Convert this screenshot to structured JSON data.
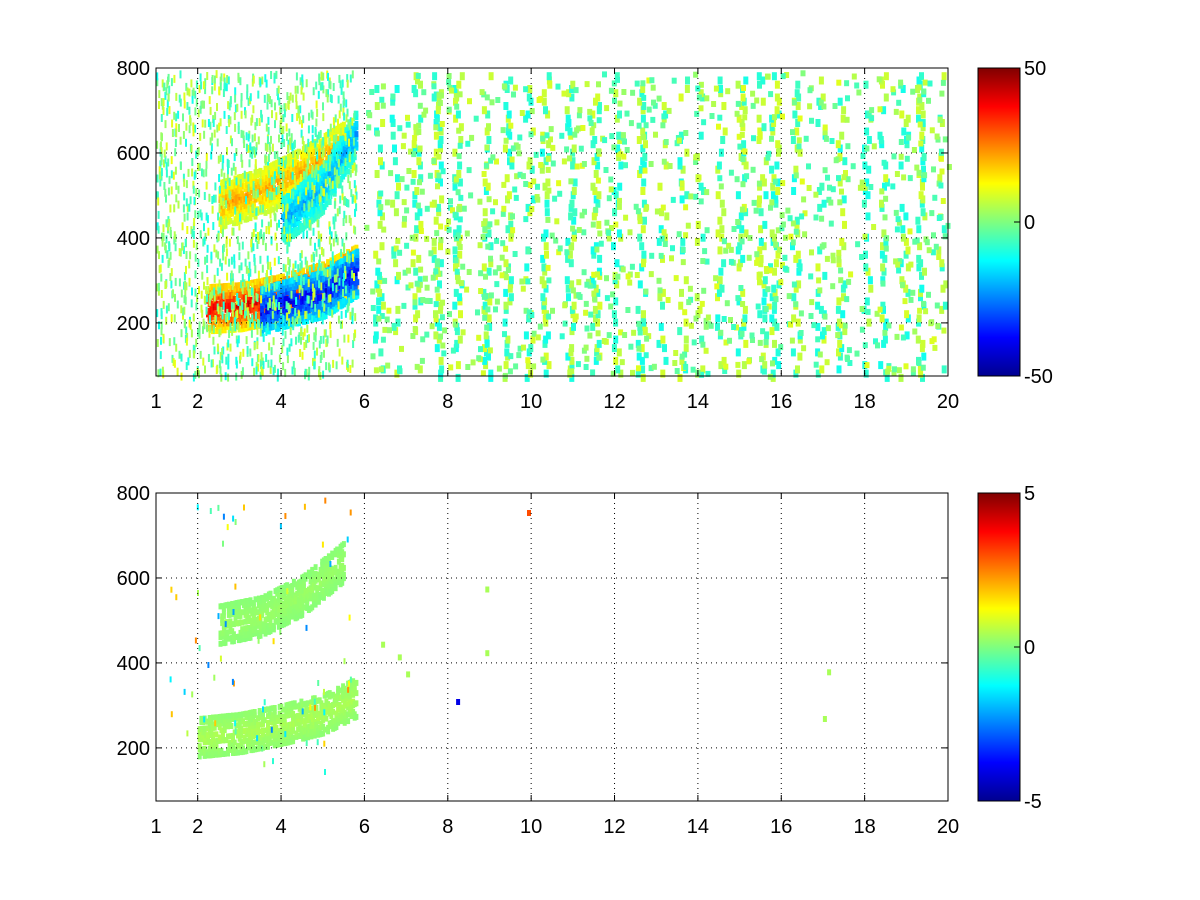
{
  "chart_data": [
    {
      "type": "heatmap",
      "title": "",
      "xlabel": "",
      "ylabel": "",
      "xlim": [
        1,
        20
      ],
      "ylim": [
        75,
        800
      ],
      "xticks": [
        1,
        2,
        4,
        6,
        8,
        10,
        12,
        14,
        16,
        18,
        20
      ],
      "xtick_labels": [
        "1",
        "2",
        "4",
        "6",
        "8",
        "10",
        "12",
        "14",
        "16",
        "18",
        "20"
      ],
      "yticks": [
        200,
        400,
        600,
        800
      ],
      "ytick_labels": [
        "200",
        "400",
        "600",
        "800"
      ],
      "grid": true,
      "colormap": "jet",
      "clim": [
        -50,
        50
      ],
      "colorbar_ticks": [
        50,
        0,
        -50
      ],
      "colorbar_labels": [
        "50",
        "0",
        "-50"
      ],
      "features": [
        {
          "name": "positive band",
          "x": [
            2.2,
            3,
            4,
            5,
            5.8
          ],
          "y": [
            235,
            240,
            260,
            290,
            330
          ],
          "value": 45
        },
        {
          "name": "negative band",
          "x": [
            3.5,
            4,
            5,
            5.8
          ],
          "y": [
            230,
            245,
            270,
            320
          ],
          "value": -45
        },
        {
          "name": "upper positive band",
          "x": [
            2.5,
            3.5,
            4.5,
            5.5
          ],
          "y": [
            480,
            510,
            560,
            620
          ],
          "value": 25
        },
        {
          "name": "upper negative band",
          "x": [
            4,
            5,
            5.8
          ],
          "y": [
            440,
            520,
            650
          ],
          "value": -25
        }
      ]
    },
    {
      "type": "heatmap",
      "title": "",
      "xlabel": "",
      "ylabel": "",
      "xlim": [
        1,
        20
      ],
      "ylim": [
        75,
        800
      ],
      "xticks": [
        1,
        2,
        4,
        6,
        8,
        10,
        12,
        14,
        16,
        18,
        20
      ],
      "xtick_labels": [
        "1",
        "2",
        "4",
        "6",
        "8",
        "10",
        "12",
        "14",
        "16",
        "18",
        "20"
      ],
      "yticks": [
        200,
        400,
        600,
        800
      ],
      "ytick_labels": [
        "200",
        "400",
        "600",
        "800"
      ],
      "grid": true,
      "colormap": "jet",
      "clim": [
        -5,
        5
      ],
      "colorbar_ticks": [
        5,
        0,
        -5
      ],
      "colorbar_labels": [
        "5",
        "0",
        "-5"
      ],
      "features": [
        {
          "name": "lower band",
          "x": [
            2,
            3,
            4,
            5,
            5.8
          ],
          "y": [
            225,
            235,
            255,
            280,
            320
          ],
          "value": 0.5
        },
        {
          "name": "upper band",
          "x": [
            2.5,
            3.5,
            4.5,
            5.5
          ],
          "y": [
            490,
            510,
            560,
            640
          ],
          "value": 0.3
        }
      ]
    }
  ]
}
